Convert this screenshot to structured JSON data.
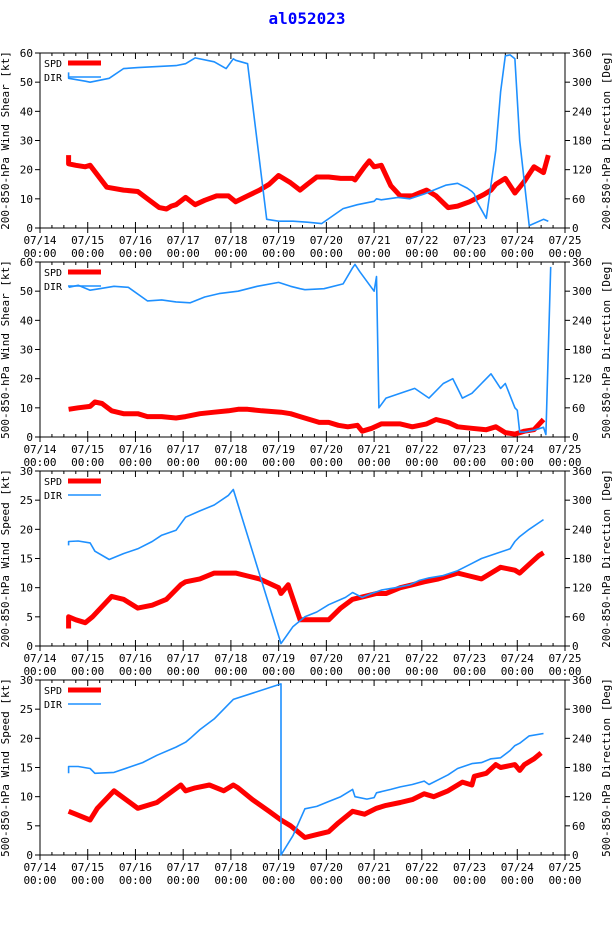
{
  "title": "al052023",
  "colors": {
    "spd": "#ff0000",
    "dir": "#1e90ff",
    "axis": "#000000",
    "title": "#0000ff"
  },
  "x_ticks": [
    [
      "07/14",
      "00:00"
    ],
    [
      "07/15",
      "00:00"
    ],
    [
      "07/16",
      "00:00"
    ],
    [
      "07/17",
      "00:00"
    ],
    [
      "07/18",
      "00:00"
    ],
    [
      "07/19",
      "00:00"
    ],
    [
      "07/20",
      "00:00"
    ],
    [
      "07/21",
      "00:00"
    ],
    [
      "07/22",
      "00:00"
    ],
    [
      "07/23",
      "00:00"
    ],
    [
      "07/24",
      "00:00"
    ],
    [
      "07/25",
      "00:00"
    ]
  ],
  "chart_data": [
    {
      "type": "line",
      "ylabel_left": "200-850-hPa Wind Shear [kt]",
      "ylabel_right": "200-850-hPa Direction [Deg]",
      "ylim_left": [
        0,
        60
      ],
      "yticks_left": [
        0,
        10,
        20,
        30,
        40,
        50,
        60
      ],
      "ylim_right": [
        0,
        360
      ],
      "yticks_right": [
        0,
        60,
        120,
        180,
        240,
        300,
        360
      ],
      "xlim": [
        0,
        11
      ],
      "legend": [
        "SPD",
        "DIR"
      ],
      "series": [
        {
          "name": "SPD",
          "axis": "left",
          "x": [
            0.6,
            0.6,
            0.75,
            0.95,
            1.05,
            1.4,
            1.75,
            2.05,
            2.25,
            2.5,
            2.65,
            2.75,
            2.85,
            3.05,
            3.25,
            3.45,
            3.7,
            3.9,
            3.95,
            4.1,
            4.35,
            4.6,
            4.8,
            5.0,
            5.1,
            5.25,
            5.45,
            5.6,
            5.8,
            6.05,
            6.3,
            6.55,
            6.6,
            6.8,
            6.9,
            7.0,
            7.15,
            7.35,
            7.55,
            7.8,
            7.95,
            8.1,
            8.3,
            8.55,
            8.75,
            9.0,
            9.3,
            9.45,
            9.55,
            9.75,
            9.95,
            10.05,
            10.15,
            10.35,
            10.55,
            10.65
          ],
          "values": [
            25,
            22,
            21.5,
            21,
            21.5,
            14,
            13,
            12.5,
            10,
            7,
            6.5,
            7.5,
            8,
            10.5,
            8,
            9.5,
            11,
            11,
            11,
            9,
            11,
            13,
            15,
            18,
            17,
            15.5,
            13,
            15,
            17.5,
            17.5,
            17,
            17,
            16.5,
            21,
            23,
            21,
            21.5,
            14.5,
            11,
            11,
            12,
            13,
            11,
            7,
            7.5,
            9,
            11.5,
            13,
            15,
            17,
            12,
            14,
            16,
            21,
            19,
            25
          ]
        },
        {
          "name": "DIR",
          "axis": "right",
          "x": [
            0.6,
            0.6,
            0.95,
            1.05,
            1.45,
            1.75,
            2.05,
            2.45,
            2.85,
            3.05,
            3.25,
            3.65,
            3.9,
            4.05,
            4.1,
            4.35,
            4.75,
            5.0,
            5.3,
            5.6,
            5.9,
            6.35,
            6.65,
            7.0,
            7.05,
            7.15,
            7.5,
            7.75,
            8.05,
            8.3,
            8.5,
            8.75,
            8.95,
            9.05,
            9.1,
            9.15,
            9.35,
            9.55,
            9.65,
            9.75,
            9.85,
            9.95,
            10.05,
            10.25,
            10.55,
            10.65
          ],
          "values": [
            320,
            308,
            302,
            300,
            308,
            328,
            330,
            332,
            334,
            338,
            350,
            342,
            328,
            348,
            345,
            338,
            18,
            14,
            14,
            12,
            9,
            40,
            48,
            55,
            60,
            58,
            63,
            60,
            70,
            80,
            88,
            92,
            82,
            75,
            70,
            55,
            20,
            160,
            280,
            354,
            356,
            348,
            180,
            5,
            18,
            14
          ]
        }
      ]
    },
    {
      "type": "line",
      "ylabel_left": "500-850-hPa Wind Shear [kt]",
      "ylabel_right": "500-850-hPa Direction [Deg]",
      "ylim_left": [
        0,
        60
      ],
      "yticks_left": [
        0,
        10,
        20,
        30,
        40,
        50,
        60
      ],
      "ylim_right": [
        0,
        360
      ],
      "yticks_right": [
        0,
        60,
        120,
        180,
        240,
        300,
        360
      ],
      "xlim": [
        0,
        11
      ],
      "legend": [
        "SPD",
        "DIR"
      ],
      "series": [
        {
          "name": "SPD",
          "axis": "left",
          "x": [
            0.6,
            0.8,
            1.05,
            1.15,
            1.3,
            1.5,
            1.75,
            2.05,
            2.25,
            2.55,
            2.85,
            3.05,
            3.35,
            3.65,
            3.95,
            4.15,
            4.35,
            4.65,
            5.05,
            5.25,
            5.45,
            5.65,
            5.85,
            6.05,
            6.25,
            6.45,
            6.65,
            6.75,
            6.95,
            7.15,
            7.35,
            7.55,
            7.8,
            8.1,
            8.3,
            8.55,
            8.75,
            9.05,
            9.35,
            9.55,
            9.75,
            9.95,
            10.15,
            10.35,
            10.55
          ],
          "values": [
            9.5,
            10,
            10.5,
            12,
            11.5,
            9,
            8,
            8,
            7,
            7,
            6.5,
            7,
            8,
            8.5,
            9,
            9.5,
            9.5,
            9,
            8.5,
            8,
            7,
            6,
            5,
            5,
            4,
            3.5,
            4,
            2,
            3,
            4.5,
            4.5,
            4.5,
            3.5,
            4.5,
            6,
            5,
            3.5,
            3,
            2.5,
            3.5,
            1.5,
            1,
            2,
            2.5,
            6
          ]
        },
        {
          "name": "DIR",
          "axis": "right",
          "x": [
            0.6,
            0.8,
            1.05,
            1.25,
            1.55,
            1.85,
            2.25,
            2.55,
            2.85,
            3.15,
            3.45,
            3.75,
            4.15,
            4.55,
            5.0,
            5.25,
            5.45,
            5.55,
            5.95,
            6.35,
            6.55,
            6.6,
            6.7,
            7.0,
            7.05,
            7.1,
            7.25,
            7.55,
            7.85,
            8.15,
            8.45,
            8.65,
            8.75,
            8.85,
            9.05,
            9.25,
            9.45,
            9.65,
            9.75,
            9.95,
            10.0,
            10.05,
            10.15,
            10.35,
            10.55,
            10.6,
            10.7
          ],
          "values": [
            308,
            312,
            302,
            305,
            310,
            308,
            280,
            282,
            278,
            276,
            288,
            295,
            300,
            310,
            318,
            310,
            305,
            303,
            305,
            315,
            348,
            355,
            340,
            300,
            330,
            60,
            80,
            90,
            100,
            80,
            110,
            120,
            100,
            80,
            90,
            110,
            130,
            100,
            110,
            60,
            55,
            10,
            10,
            14,
            20,
            5,
            350
          ]
        }
      ]
    },
    {
      "type": "line",
      "ylabel_left": "200-850-hPa Wind Speed [kt]",
      "ylabel_right": "200-850-hPa Direction [Deg]",
      "ylim_left": [
        0,
        30
      ],
      "yticks_left": [
        0,
        5,
        10,
        15,
        20,
        25,
        30
      ],
      "ylim_right": [
        0,
        360
      ],
      "yticks_right": [
        0,
        60,
        120,
        180,
        240,
        300,
        360
      ],
      "xlim": [
        0,
        11
      ],
      "legend": [
        "SPD",
        "DIR"
      ],
      "series": [
        {
          "name": "SPD",
          "axis": "left",
          "x": [
            0.6,
            0.6,
            0.75,
            0.95,
            1.1,
            1.5,
            1.75,
            2.05,
            2.35,
            2.65,
            2.95,
            3.05,
            3.35,
            3.65,
            3.95,
            4.1,
            4.35,
            4.6,
            5.0,
            5.05,
            5.2,
            5.45,
            5.8,
            6.05,
            6.3,
            6.55,
            6.8,
            7.05,
            7.25,
            7.55,
            7.8,
            8.05,
            8.35,
            8.55,
            8.75,
            9.0,
            9.25,
            9.45,
            9.65,
            9.95,
            10.05,
            10.25,
            10.45,
            10.55
          ],
          "values": [
            3,
            5,
            4.5,
            4,
            5,
            8.5,
            8,
            6.5,
            7,
            8,
            10.5,
            11,
            11.5,
            12.5,
            12.5,
            12.5,
            12,
            11.5,
            10,
            9,
            10.5,
            4.5,
            4.5,
            4.5,
            6.5,
            8,
            8.5,
            9,
            9,
            10,
            10.5,
            11,
            11.5,
            12,
            12.5,
            12,
            11.5,
            12.5,
            13.5,
            13,
            12.5,
            14,
            15.5,
            16
          ]
        },
        {
          "name": "DIR",
          "axis": "right",
          "x": [
            0.6,
            0.6,
            0.8,
            1.05,
            1.15,
            1.45,
            1.75,
            2.05,
            2.35,
            2.55,
            2.85,
            3.05,
            3.35,
            3.65,
            3.95,
            4.05,
            5.05,
            5.3,
            5.55,
            5.8,
            6.05,
            6.4,
            6.55,
            6.75,
            6.95,
            7.15,
            7.45,
            7.75,
            7.95,
            8.15,
            8.45,
            8.75,
            9.05,
            9.25,
            9.55,
            9.85,
            9.95,
            10.05,
            10.25,
            10.55
          ],
          "values": [
            207,
            215,
            216,
            212,
            195,
            178,
            190,
            200,
            215,
            228,
            238,
            265,
            278,
            290,
            310,
            322,
            5,
            40,
            60,
            70,
            85,
            100,
            110,
            100,
            108,
            115,
            120,
            126,
            135,
            140,
            145,
            155,
            170,
            180,
            190,
            200,
            215,
            225,
            240,
            260
          ]
        }
      ]
    },
    {
      "type": "line",
      "ylabel_left": "500-850-hPa Wind Speed [kt]",
      "ylabel_right": "500-850-hPa Direction [Deg]",
      "ylim_left": [
        0,
        30
      ],
      "yticks_left": [
        0,
        5,
        10,
        15,
        20,
        25,
        30
      ],
      "ylim_right": [
        0,
        360
      ],
      "yticks_right": [
        0,
        60,
        120,
        180,
        240,
        300,
        360
      ],
      "xlim": [
        0,
        11
      ],
      "legend": [
        "SPD",
        "DIR"
      ],
      "series": [
        {
          "name": "SPD",
          "axis": "left",
          "x": [
            0.6,
            0.75,
            1.05,
            1.2,
            1.55,
            2.05,
            2.45,
            2.95,
            3.05,
            3.25,
            3.55,
            3.85,
            4.05,
            4.15,
            4.45,
            4.8,
            5.05,
            5.25,
            5.55,
            5.8,
            6.05,
            6.25,
            6.55,
            6.8,
            7.05,
            7.25,
            7.55,
            7.8,
            8.05,
            8.25,
            8.55,
            8.85,
            9.05,
            9.1,
            9.35,
            9.55,
            9.65,
            9.95,
            10.05,
            10.15,
            10.35,
            10.5
          ],
          "values": [
            7.5,
            7,
            6,
            8,
            11,
            8,
            9,
            12,
            11,
            11.5,
            12,
            11,
            12,
            11.5,
            9.5,
            7.5,
            6,
            5,
            3,
            3.5,
            4,
            5.5,
            7.5,
            7,
            8,
            8.5,
            9,
            9.5,
            10.5,
            10,
            11,
            12.5,
            12,
            13.5,
            14,
            15.5,
            15,
            15.5,
            14.5,
            15.5,
            16.5,
            17.5
          ]
        },
        {
          "name": "DIR",
          "axis": "right",
          "x": [
            0.6,
            0.6,
            0.8,
            1.05,
            1.15,
            1.55,
            1.85,
            2.15,
            2.45,
            2.85,
            3.05,
            3.15,
            3.35,
            3.65,
            3.95,
            4.05,
            5.05,
            5.05,
            5.3,
            5.55,
            5.8,
            6.05,
            6.3,
            6.55,
            6.6,
            6.85,
            7.0,
            7.05,
            7.35,
            7.55,
            7.8,
            8.05,
            8.15,
            8.35,
            8.55,
            8.75,
            9.05,
            9.25,
            9.45,
            9.65,
            9.85,
            9.95,
            10.05,
            10.25,
            10.55
          ],
          "values": [
            168,
            182,
            182,
            178,
            168,
            170,
            180,
            190,
            205,
            222,
            232,
            240,
            258,
            280,
            310,
            320,
            352,
            0,
            40,
            95,
            100,
            110,
            120,
            135,
            120,
            115,
            118,
            128,
            135,
            140,
            145,
            152,
            145,
            155,
            165,
            178,
            188,
            190,
            198,
            200,
            215,
            225,
            230,
            245,
            250
          ]
        }
      ]
    }
  ]
}
